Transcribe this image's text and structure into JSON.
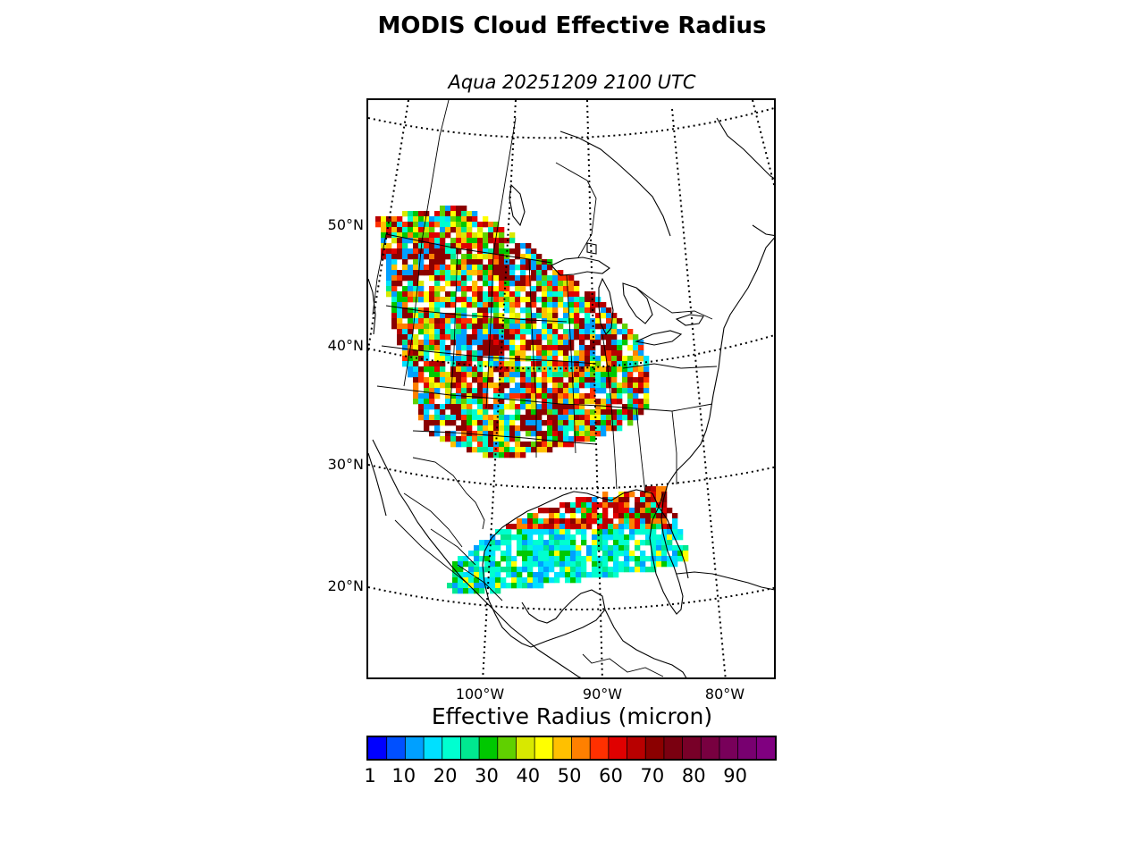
{
  "title": "MODIS Cloud Effective Radius",
  "subtitle": "Aqua 20251209 2100 UTC",
  "map": {
    "projection": "lambert-conformal",
    "region": "Central and Eastern United States, Gulf of Mexico, Mexico",
    "lat_labels": [
      "50°N",
      "40°N",
      "30°N",
      "20°N"
    ],
    "lon_labels": [
      "100°W",
      "90°W",
      "80°W"
    ],
    "graticule": "dotted",
    "swaths": [
      "northern-swath",
      "gulf-swath"
    ]
  },
  "colorbar": {
    "label": "Effective Radius (micron)",
    "min": 1,
    "max": 100,
    "tick_labels": [
      "1",
      "10",
      "20",
      "30",
      "40",
      "50",
      "60",
      "70",
      "80",
      "90"
    ],
    "colors": [
      "#0000ff",
      "#0050ff",
      "#00a0ff",
      "#00e0ff",
      "#00ffd0",
      "#00e890",
      "#00c800",
      "#60d000",
      "#d8e800",
      "#ffff00",
      "#ffc000",
      "#ff8000",
      "#ff3000",
      "#e00000",
      "#b80000",
      "#8b0000",
      "#7a0010",
      "#780028",
      "#780040",
      "#78005a",
      "#780070",
      "#800080"
    ]
  }
}
